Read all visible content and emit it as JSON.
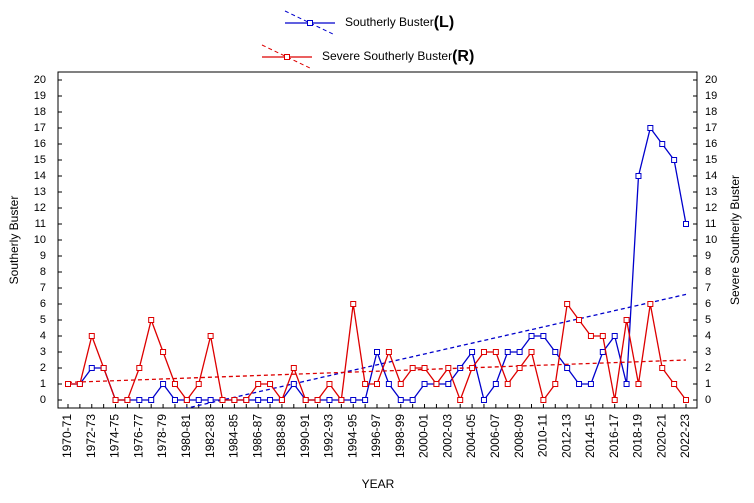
{
  "chart_data": {
    "type": "line",
    "x_label": "YEAR",
    "y_label": "Southerly Buster",
    "y2_label": "Severe Southerly Buster",
    "categories": [
      "1970-71",
      null,
      "1972-73",
      null,
      "1974-75",
      null,
      "1976-77",
      null,
      "1978-79",
      null,
      "1980-81",
      null,
      "1982-83",
      null,
      "1984-85",
      null,
      "1986-87",
      null,
      "1988-89",
      null,
      "1990-91",
      null,
      "1992-93",
      null,
      "1994-95",
      null,
      "1996-97",
      null,
      "1998-99",
      null,
      "2000-01",
      null,
      "2002-03",
      null,
      "2004-05",
      null,
      "2006-07",
      null,
      "2008-09",
      null,
      "2010-11",
      null,
      "2012-13",
      null,
      "2014-15",
      null,
      "2016-17",
      null,
      "2018-19",
      null,
      "2020-21",
      null,
      "2022-23"
    ],
    "series": [
      {
        "name": "Southerly Buster",
        "axis_tag": "(L)",
        "color": "#0000cc",
        "axis": "y",
        "values": [
          1,
          1,
          2,
          2,
          0,
          0,
          0,
          0,
          1,
          0,
          0,
          0,
          0,
          0,
          0,
          0,
          0,
          0,
          0,
          1,
          0,
          0,
          0,
          0,
          0,
          0,
          3,
          1,
          0,
          0,
          1,
          1,
          1,
          2,
          3,
          0,
          1,
          3,
          3,
          4,
          4,
          3,
          2,
          1,
          1,
          3,
          4,
          1,
          14,
          17,
          16,
          15,
          11
        ],
        "trend": [
          -2.2,
          6.6
        ]
      },
      {
        "name": "Severe Southerly Buster",
        "axis_tag": "(R)",
        "color": "#dd0000",
        "axis": "y2",
        "values": [
          1,
          1,
          4,
          2,
          0,
          0,
          2,
          5,
          3,
          1,
          0,
          1,
          4,
          0,
          0,
          0,
          1,
          1,
          0,
          2,
          0,
          0,
          1,
          0,
          6,
          1,
          1,
          3,
          1,
          2,
          2,
          1,
          2,
          0,
          2,
          3,
          3,
          1,
          2,
          3,
          0,
          1,
          6,
          5,
          4,
          4,
          0,
          5,
          1,
          6,
          2,
          1,
          0
        ],
        "trend": [
          1.1,
          2.5
        ]
      }
    ],
    "ylim": [
      -0.5,
      20
    ],
    "yticks": [
      0,
      1,
      2,
      3,
      4,
      5,
      6,
      7,
      8,
      9,
      10,
      11,
      12,
      13,
      14,
      15,
      16,
      17,
      18,
      19,
      20
    ],
    "y2lim": [
      -0.5,
      20
    ],
    "y2ticks": [
      0,
      1,
      2,
      3,
      4,
      5,
      6,
      7,
      8,
      9,
      10,
      11,
      12,
      13,
      14,
      15,
      16,
      17,
      18,
      19,
      20
    ],
    "grid": false
  }
}
